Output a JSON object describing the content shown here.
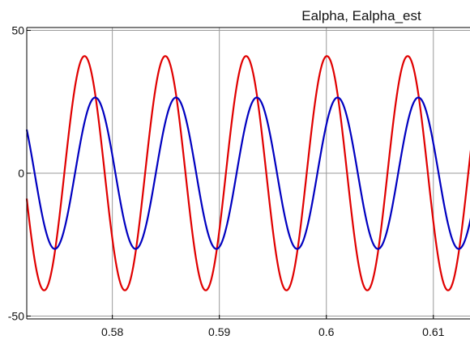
{
  "chart_data": {
    "type": "line",
    "title": "Ealpha, Ealpha_est",
    "xlabel": "",
    "ylabel": "",
    "xlim": [
      0.572,
      0.6135
    ],
    "ylim": [
      -51,
      51
    ],
    "x_ticks": [
      0.58,
      0.59,
      0.6,
      0.61
    ],
    "x_tick_labels": [
      "0.58",
      "0.59",
      "0.6",
      "0.61"
    ],
    "y_ticks": [
      50,
      0,
      -50
    ],
    "y_tick_labels": [
      "50",
      "0",
      "-50"
    ],
    "grid": true,
    "legend": "none",
    "series": [
      {
        "color": "#e00000",
        "waveform": "sine",
        "amplitude": 41,
        "period": 0.00755,
        "first_peak_x": 0.5774,
        "range": [
          0.572,
          0.6135
        ]
      },
      {
        "color": "#0000c0",
        "waveform": "sine",
        "amplitude": 26.5,
        "period": 0.00755,
        "first_peak_x": 0.5784,
        "range": [
          0.572,
          0.6135
        ]
      }
    ]
  }
}
